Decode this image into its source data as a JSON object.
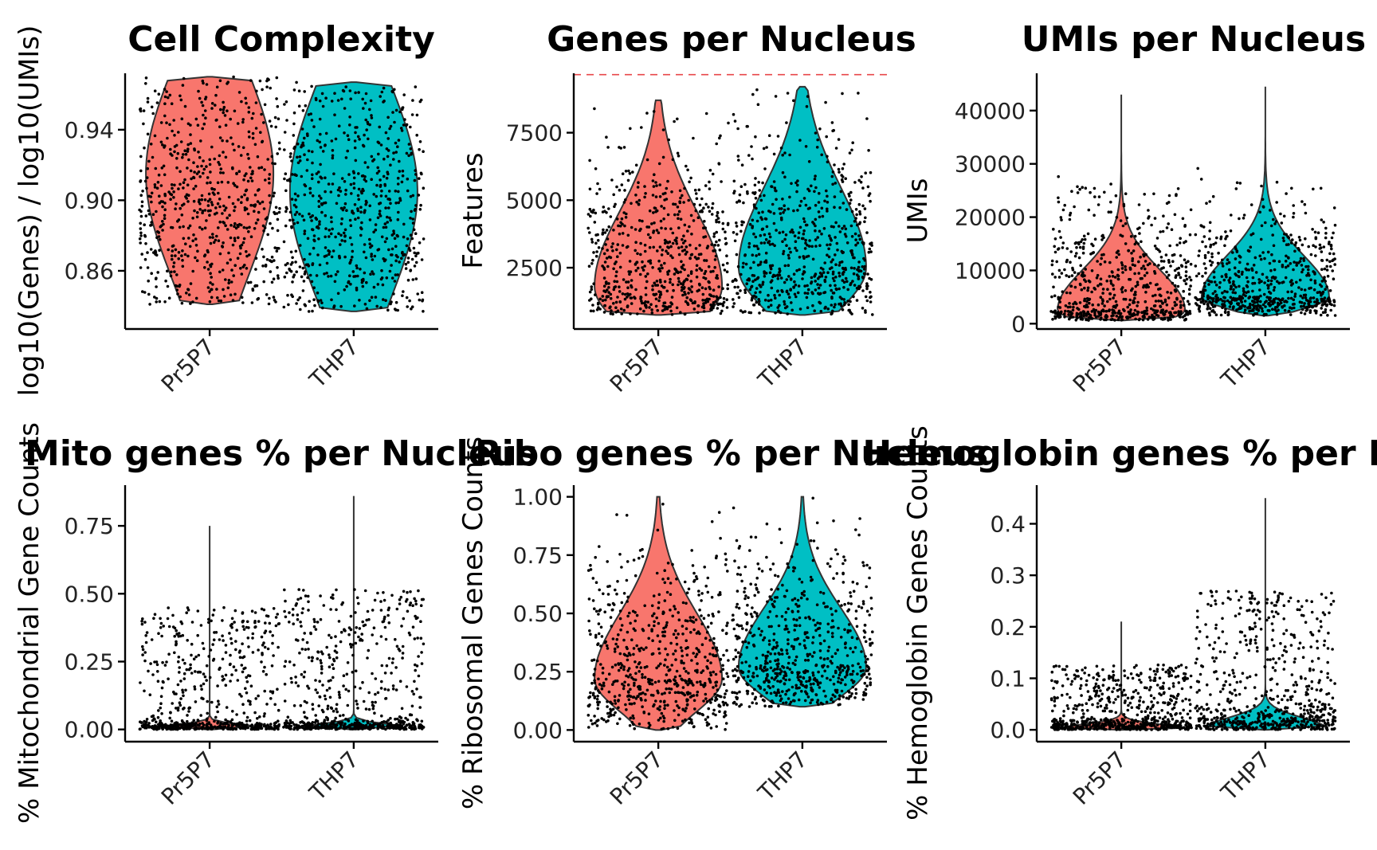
{
  "colors": {
    "Pr5P7": "#F8766D",
    "THP7": "#00BFC4",
    "points": "#000000",
    "threshold": "#E8474A"
  },
  "chart_data": [
    {
      "type": "violin",
      "title": "Cell Complexity",
      "ylabel": "log10(Genes) / log10(UMIs)",
      "xlabel": "",
      "categories": [
        "Pr5P7",
        "THP7"
      ],
      "ylim": [
        0.827,
        0.972
      ],
      "yticks": [
        0.86,
        0.9,
        0.94
      ],
      "ytick_labels": [
        "0.86",
        "0.90",
        "0.94"
      ],
      "series": [
        {
          "category": "Pr5P7",
          "min": 0.841,
          "max": 0.97,
          "mode": 0.915,
          "median": 0.912
        },
        {
          "category": "THP7",
          "min": 0.837,
          "max": 0.967,
          "mode": 0.905,
          "median": 0.899
        }
      ]
    },
    {
      "type": "violin",
      "title": "Genes per Nucleus",
      "ylabel": "Features",
      "xlabel": "",
      "categories": [
        "Pr5P7",
        "THP7"
      ],
      "ylim": [
        230,
        9700
      ],
      "yticks": [
        2500,
        5000,
        7500
      ],
      "ytick_labels": [
        "2500",
        "5000",
        "7500"
      ],
      "threshold_line": 9650,
      "series": [
        {
          "category": "Pr5P7",
          "min": 750,
          "max": 8700,
          "mode": 1800,
          "median": 2400
        },
        {
          "category": "THP7",
          "min": 750,
          "max": 9200,
          "mode": 2500,
          "median": 3500
        }
      ]
    },
    {
      "type": "violin",
      "title": "UMIs per Nucleus",
      "ylabel": "UMIs",
      "xlabel": "",
      "categories": [
        "Pr5P7",
        "THP7"
      ],
      "ylim": [
        -1000,
        47000
      ],
      "yticks": [
        0,
        10000,
        20000,
        30000,
        40000
      ],
      "ytick_labels": [
        "0",
        "10000",
        "20000",
        "30000",
        "40000"
      ],
      "series": [
        {
          "category": "Pr5P7",
          "min": 600,
          "max": 43000,
          "mode": 2500,
          "median": 4000
        },
        {
          "category": "THP7",
          "min": 1500,
          "max": 44500,
          "mode": 5000,
          "median": 7500
        }
      ]
    },
    {
      "type": "violin",
      "title": "Mito genes % per Nucleus",
      "ylabel": "% Mitochondrial Gene Counts",
      "xlabel": "",
      "categories": [
        "Pr5P7",
        "THP7"
      ],
      "ylim": [
        -0.045,
        0.9
      ],
      "yticks": [
        0.0,
        0.25,
        0.5,
        0.75
      ],
      "ytick_labels": [
        "0.00",
        "0.25",
        "0.50",
        "0.75"
      ],
      "series": [
        {
          "category": "Pr5P7",
          "min": 0.0,
          "max": 0.75,
          "mode": 0.0,
          "median": 0.0
        },
        {
          "category": "THP7",
          "min": 0.0,
          "max": 0.86,
          "mode": 0.0,
          "median": 0.0
        }
      ]
    },
    {
      "type": "violin",
      "title": "Ribo genes % per Nucleus",
      "ylabel": "% Ribosomal Genes Counts",
      "xlabel": "",
      "categories": [
        "Pr5P7",
        "THP7"
      ],
      "ylim": [
        -0.05,
        1.05
      ],
      "yticks": [
        0.0,
        0.25,
        0.5,
        0.75,
        1.0
      ],
      "ytick_labels": [
        "0.00",
        "0.25",
        "0.50",
        "0.75",
        "1.00"
      ],
      "series": [
        {
          "category": "Pr5P7",
          "min": 0.0,
          "max": 1.0,
          "mode": 0.22,
          "median": 0.25
        },
        {
          "category": "THP7",
          "min": 0.1,
          "max": 1.0,
          "mode": 0.27,
          "median": 0.31
        }
      ]
    },
    {
      "type": "violin",
      "title": "Hemoglobin genes % per Nucleus",
      "ylabel": "% Hemoglobin Genes Counts",
      "xlabel": "",
      "categories": [
        "Pr5P7",
        "THP7"
      ],
      "ylim": [
        -0.023,
        0.475
      ],
      "yticks": [
        0.0,
        0.1,
        0.2,
        0.3,
        0.4
      ],
      "ytick_labels": [
        "0.0",
        "0.1",
        "0.2",
        "0.3",
        "0.4"
      ],
      "series": [
        {
          "category": "Pr5P7",
          "min": 0.0,
          "max": 0.21,
          "mode": 0.0,
          "median": 0.0
        },
        {
          "category": "THP7",
          "min": 0.0,
          "max": 0.45,
          "mode": 0.0,
          "median": 0.0
        }
      ]
    }
  ]
}
